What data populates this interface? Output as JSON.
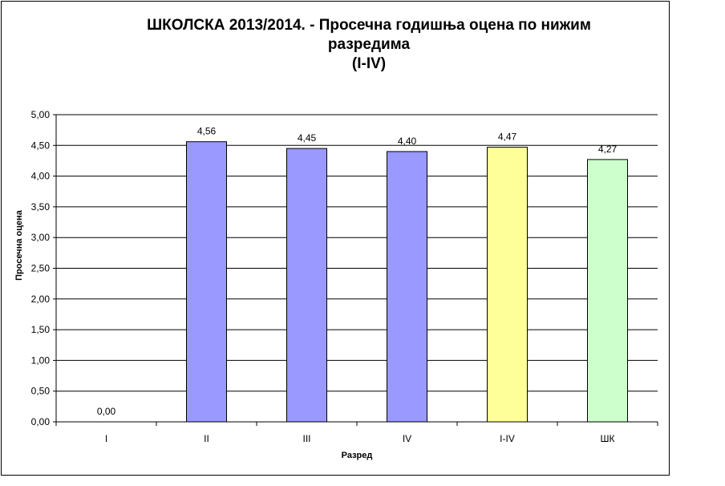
{
  "chart_data": {
    "type": "bar",
    "title_lines": [
      "ШКОЛСКА 2013/2014. - Просечна годишња оцена по нижим",
      "разредима",
      "(I-IV)"
    ],
    "xlabel": "Разред",
    "ylabel": "Просечна оцена",
    "categories": [
      "I",
      "II",
      "III",
      "IV",
      "I-IV",
      "ШК"
    ],
    "values": [
      0.0,
      4.56,
      4.45,
      4.4,
      4.47,
      4.27
    ],
    "data_labels": [
      "0,00",
      "4,56",
      "4,45",
      "4,40",
      "4,47",
      "4,27"
    ],
    "bar_colors": [
      "#9999ff",
      "#9999ff",
      "#9999ff",
      "#9999ff",
      "#ffff99",
      "#ccffcc"
    ],
    "ylim": [
      0,
      5
    ],
    "yticks": [
      "0,00",
      "0,50",
      "1,00",
      "1,50",
      "2,00",
      "2,50",
      "3,00",
      "3,50",
      "4,00",
      "4,50",
      "5,00"
    ],
    "grid": true,
    "legend": "none"
  }
}
